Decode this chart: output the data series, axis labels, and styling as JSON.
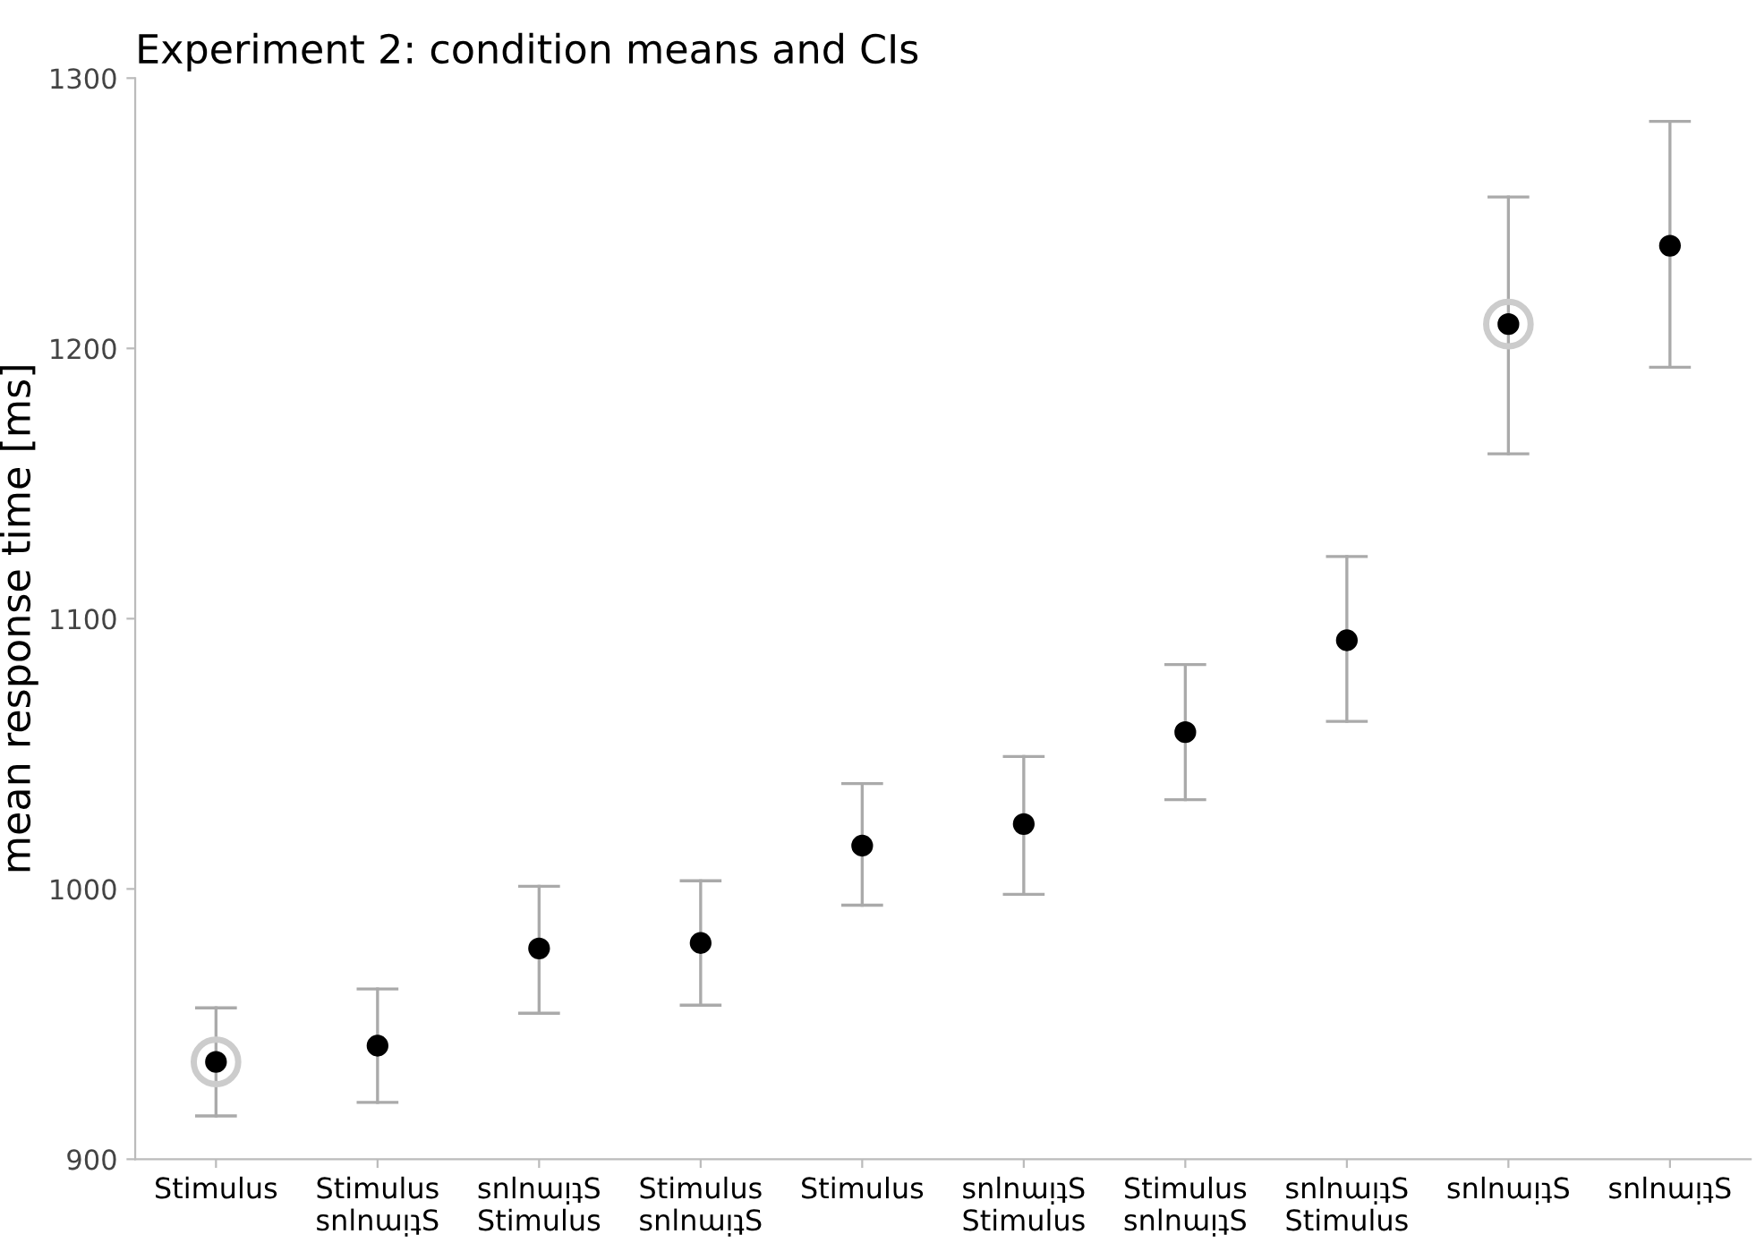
{
  "chart_data": {
    "type": "scatter",
    "title": "Experiment 2: condition means and CIs",
    "ylabel": "mean response time [ms]",
    "categories": [
      "Stimulus",
      "Stimulus\nsnlnɯᴉʇS",
      "snlnɯᴉʇS\nStimulus",
      "Stimulus\nsnlnɯᴉʇS",
      "Stimulus",
      "snlnɯᴉʇS\nStimulus",
      "Stimulus\nsnlnɯᴉʇS",
      "snlnɯᴉʇS\nStimulus",
      "snlnɯᴉʇS",
      "snlnɯᴉʇS"
    ],
    "series": [
      {
        "color": "#cccccc",
        "values": [
          936,
          null,
          null,
          null,
          null,
          null,
          null,
          null,
          1209,
          null
        ]
      },
      {
        "color": "#000000",
        "values": [
          936,
          942,
          978,
          980,
          1016,
          1024,
          1058,
          1092,
          1209,
          1238
        ],
        "errors": [
          [
            916,
            956
          ],
          [
            921,
            963
          ],
          [
            954,
            1001
          ],
          [
            957,
            1003
          ],
          [
            994,
            1039
          ],
          [
            998,
            1049
          ],
          [
            1033,
            1083
          ],
          [
            1062,
            1123
          ],
          [
            1161,
            1256
          ],
          [
            1193,
            1284
          ]
        ]
      }
    ],
    "ylim": [
      900,
      1300
    ],
    "yticks": [
      900,
      1000,
      1100,
      1200,
      1300
    ],
    "grid": false,
    "marker": "circle"
  }
}
